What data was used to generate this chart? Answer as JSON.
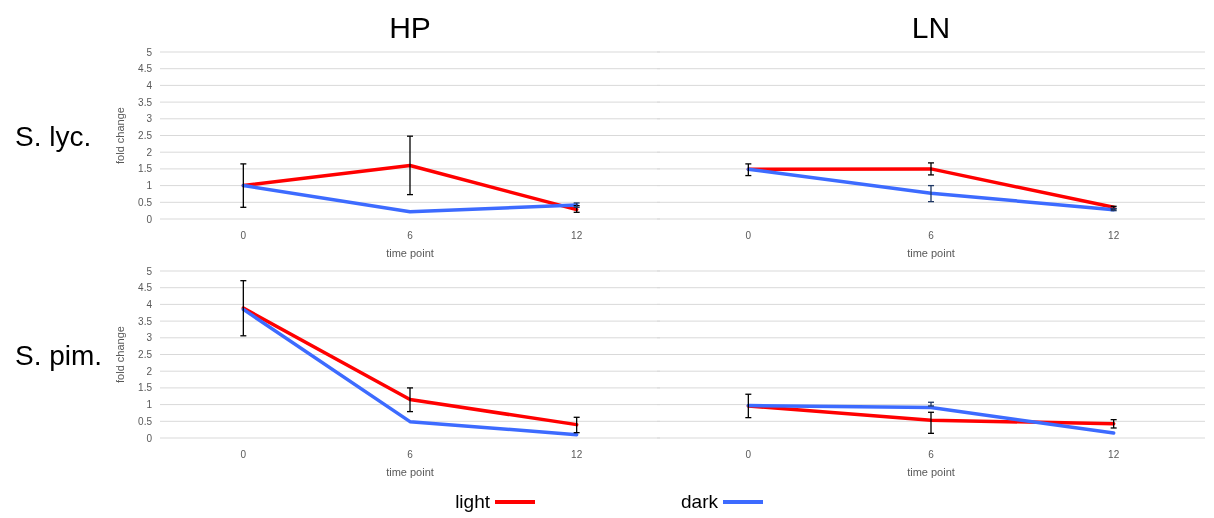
{
  "chart_data": [
    {
      "type": "line",
      "title": "HP",
      "annotations": [
        "S. lyc."
      ],
      "xlabel": "time point",
      "ylabel": "fold change",
      "categories": [
        "0",
        "6",
        "12"
      ],
      "ylim": [
        0,
        5
      ],
      "yticks": [
        0,
        0.5,
        1,
        1.5,
        2,
        2.5,
        3,
        3.5,
        4,
        4.5,
        5
      ],
      "grid": "y",
      "series": [
        {
          "color": "#ff0000",
          "values": [
            1.0,
            1.6,
            0.28
          ],
          "errors": [
            [
              0.35,
              1.65
            ],
            [
              0.73,
              2.48
            ],
            [
              0.2,
              0.4
            ]
          ]
        },
        {
          "color": "#3d6bff",
          "values": [
            1.0,
            0.22,
            0.42
          ],
          "errors": [
            null,
            null,
            [
              0.35,
              0.48
            ]
          ]
        }
      ]
    },
    {
      "type": "line",
      "title": "LN",
      "xlabel": "time point",
      "categories": [
        "0",
        "6",
        "12"
      ],
      "ylim": [
        0,
        5
      ],
      "yticks": [
        0,
        0.5,
        1,
        1.5,
        2,
        2.5,
        3,
        3.5,
        4,
        4.5,
        5
      ],
      "grid": "y",
      "tick_labels": "x",
      "series": [
        {
          "color": "#ff0000",
          "values": [
            1.49,
            1.5,
            0.35
          ],
          "errors": [
            [
              1.3,
              1.65
            ],
            [
              1.32,
              1.68
            ],
            [
              0.3,
              0.38
            ]
          ]
        },
        {
          "color": "#3d6bff",
          "values": [
            1.49,
            0.77,
            0.28
          ],
          "errors": [
            null,
            [
              0.52,
              1.0
            ],
            [
              0.25,
              0.32
            ]
          ]
        }
      ]
    },
    {
      "type": "line",
      "annotations": [
        "S. pim."
      ],
      "xlabel": "time point",
      "ylabel": "fold change",
      "categories": [
        "0",
        "6",
        "12"
      ],
      "ylim": [
        0,
        5
      ],
      "yticks": [
        0,
        0.5,
        1,
        1.5,
        2,
        2.5,
        3,
        3.5,
        4,
        4.5,
        5
      ],
      "grid": "y",
      "legend": "bottom",
      "series": [
        {
          "name": "light",
          "color": "#ff0000",
          "values": [
            3.89,
            1.15,
            0.4
          ],
          "errors": [
            [
              3.06,
              4.71
            ],
            [
              0.79,
              1.5
            ],
            [
              0.16,
              0.62
            ]
          ]
        },
        {
          "name": "dark",
          "color": "#3d6bff",
          "values": [
            3.85,
            0.49,
            0.1
          ],
          "errors": [
            null,
            null,
            null
          ]
        }
      ]
    },
    {
      "type": "line",
      "xlabel": "time point",
      "categories": [
        "0",
        "6",
        "12"
      ],
      "ylim": [
        0,
        5
      ],
      "yticks": [
        0,
        0.5,
        1,
        1.5,
        2,
        2.5,
        3,
        3.5,
        4,
        4.5,
        5
      ],
      "grid": "y",
      "tick_labels": "x",
      "series": [
        {
          "color": "#ff0000",
          "values": [
            0.96,
            0.53,
            0.43
          ],
          "errors": [
            [
              0.61,
              1.31
            ],
            [
              0.14,
              0.77
            ],
            [
              0.3,
              0.55
            ]
          ]
        },
        {
          "color": "#3d6bff",
          "values": [
            0.97,
            0.91,
            0.15
          ],
          "errors": [
            null,
            [
              0.96,
              1.07
            ],
            null
          ]
        }
      ]
    }
  ]
}
